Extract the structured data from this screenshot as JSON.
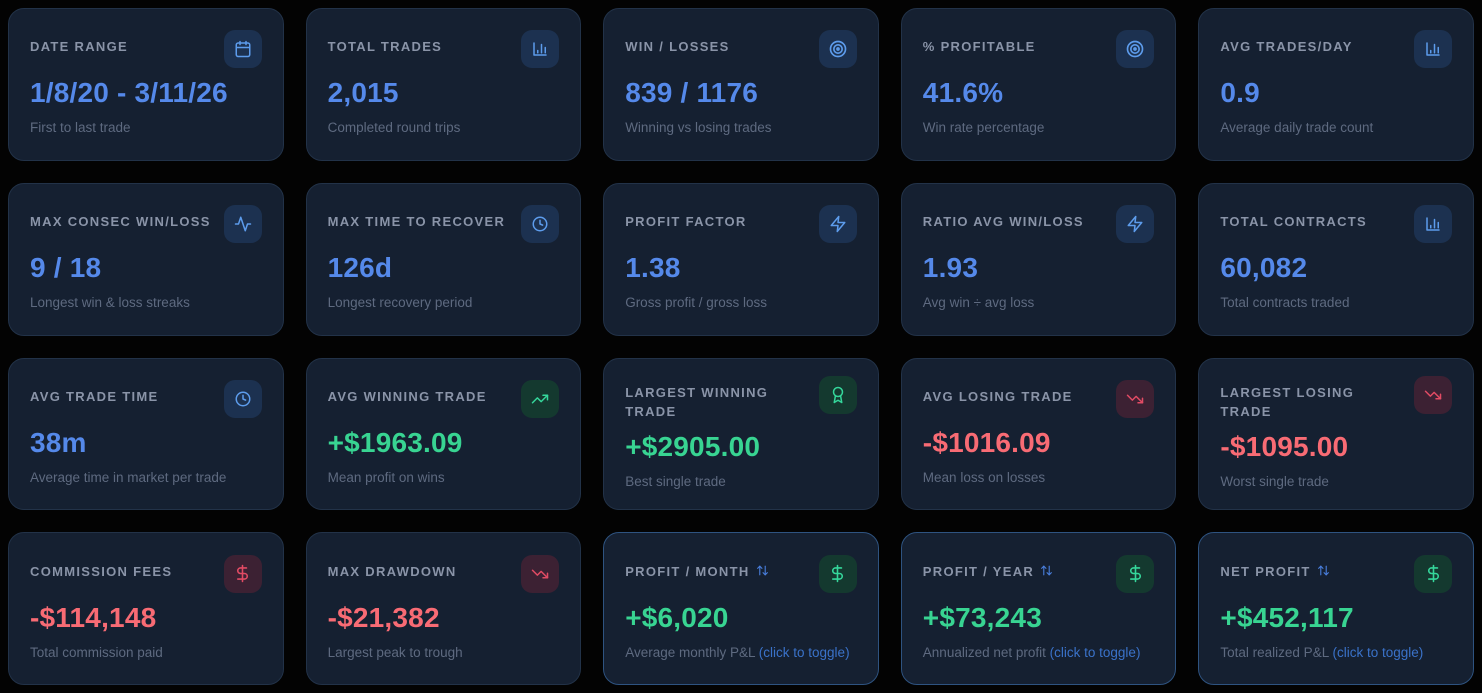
{
  "colors": {
    "accent_blue": "#5589ea",
    "accent_green": "#38d492",
    "accent_red": "#f86b74",
    "card_background": "#152031",
    "title_gray": "#8a94a8",
    "subtitle_gray": "#5e6a80",
    "toggle_link_blue": "#3a72c9"
  },
  "cards": [
    {
      "title": "DATE RANGE",
      "icon": "calendar-icon",
      "tone": "blue",
      "value": "1/8/20 - 3/11/26",
      "subtitle": "First to last trade"
    },
    {
      "title": "TOTAL TRADES",
      "icon": "bar-chart-icon",
      "tone": "blue",
      "value": "2,015",
      "subtitle": "Completed round trips"
    },
    {
      "title": "WIN / LOSSES",
      "icon": "target-icon",
      "tone": "blue",
      "value": "839 / 1176",
      "subtitle": "Winning vs losing trades"
    },
    {
      "title": "% PROFITABLE",
      "icon": "target-icon",
      "tone": "blue",
      "value": "41.6%",
      "subtitle": "Win rate percentage"
    },
    {
      "title": "AVG TRADES/DAY",
      "icon": "bar-chart-icon",
      "tone": "blue",
      "value": "0.9",
      "subtitle": "Average daily trade count"
    },
    {
      "title": "MAX CONSEC WIN/LOSS",
      "icon": "activity-icon",
      "tone": "blue",
      "value": "9 / 18",
      "subtitle": "Longest win & loss streaks"
    },
    {
      "title": "MAX TIME TO RECOVER",
      "icon": "clock-icon",
      "tone": "blue",
      "value": "126d",
      "subtitle": "Longest recovery period"
    },
    {
      "title": "PROFIT FACTOR",
      "icon": "zap-icon",
      "tone": "blue",
      "value": "1.38",
      "subtitle": "Gross profit / gross loss"
    },
    {
      "title": "RATIO AVG WIN/LOSS",
      "icon": "zap-icon",
      "tone": "blue",
      "value": "1.93",
      "subtitle": "Avg win ÷ avg loss"
    },
    {
      "title": "TOTAL CONTRACTS",
      "icon": "bar-chart-icon",
      "tone": "blue",
      "value": "60,082",
      "subtitle": "Total contracts traded"
    },
    {
      "title": "AVG TRADE TIME",
      "icon": "clock-icon",
      "tone": "blue",
      "value": "38m",
      "subtitle": "Average time in market per trade"
    },
    {
      "title": "AVG WINNING TRADE",
      "icon": "trending-up-icon",
      "tone": "green",
      "value": "+$1963.09",
      "subtitle": "Mean profit on wins"
    },
    {
      "title": "LARGEST WINNING TRADE",
      "icon": "award-icon",
      "tone": "green",
      "value": "+$2905.00",
      "subtitle": "Best single trade"
    },
    {
      "title": "AVG LOSING TRADE",
      "icon": "trending-down-icon",
      "tone": "red",
      "value": "-$1016.09",
      "subtitle": "Mean loss on losses"
    },
    {
      "title": "LARGEST LOSING TRADE",
      "icon": "trending-down-icon",
      "tone": "red",
      "value": "-$1095.00",
      "subtitle": "Worst single trade"
    },
    {
      "title": "COMMISSION FEES",
      "icon": "dollar-icon",
      "tone": "red",
      "value": "-$114,148",
      "subtitle": "Total commission paid"
    },
    {
      "title": "MAX DRAWDOWN",
      "icon": "trending-down-icon",
      "tone": "red",
      "value": "-$21,382",
      "subtitle": "Largest peak to trough"
    },
    {
      "title": "PROFIT / MONTH",
      "icon": "dollar-icon",
      "tone": "green",
      "value": "+$6,020",
      "subtitle": "Average monthly P&L",
      "title_icon": "arrow-up-down-icon",
      "subtitle_link": "(click to toggle)",
      "toggle": true
    },
    {
      "title": "PROFIT / YEAR",
      "icon": "dollar-icon",
      "tone": "green",
      "value": "+$73,243",
      "subtitle": "Annualized net profit",
      "title_icon": "arrow-up-down-icon",
      "subtitle_link": "(click to toggle)",
      "toggle": true
    },
    {
      "title": "NET PROFIT",
      "icon": "dollar-icon",
      "tone": "green",
      "value": "+$452,117",
      "subtitle": "Total realized P&L",
      "title_icon": "arrow-up-down-icon",
      "subtitle_link": "(click to toggle)",
      "toggle": true
    }
  ]
}
